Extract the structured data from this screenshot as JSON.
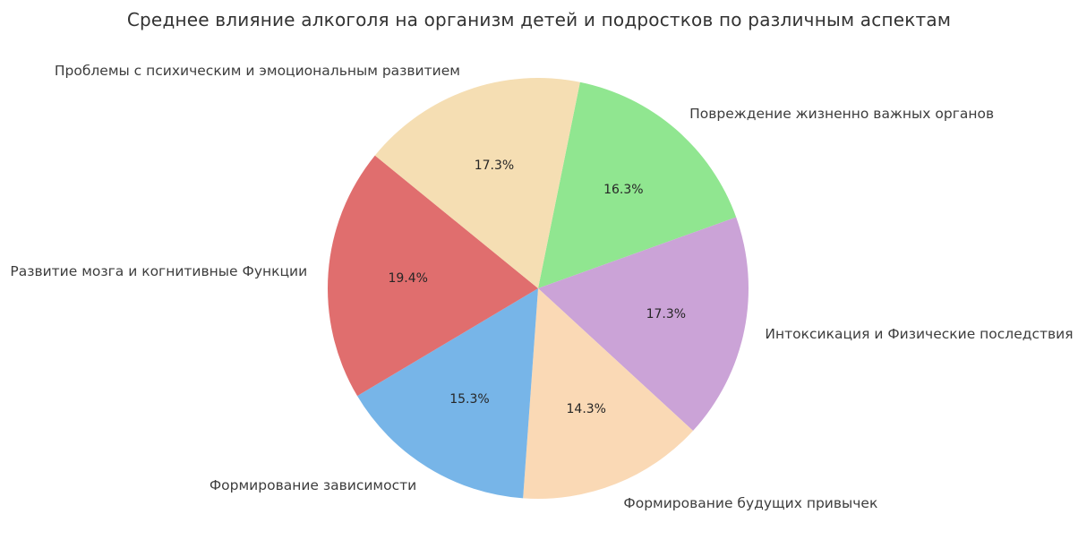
{
  "title": "Среднее влияние алкоголя на организм детей и подростков по различным аспектам",
  "colors": {
    "background": "#ffffff",
    "title_text": "#333333",
    "label_text": "#3d3d3d",
    "percent_text": "#262626"
  },
  "chart_data": {
    "type": "pie",
    "title": "Среднее влияние алкоголя на организм детей и подростков по различным аспектам",
    "legend": "none",
    "grid": "off",
    "start_angle_deg_clockwise_from_top": 11.5,
    "direction": "clockwise",
    "slices": [
      {
        "label": "Повреждение жизненно важных органов",
        "value": 16.3,
        "percent_label": "16.3%",
        "color": "#90e690"
      },
      {
        "label": "Интоксикация и Физические последствия",
        "value": 17.3,
        "percent_label": "17.3%",
        "color": "#cba3d7"
      },
      {
        "label": "Формирование будущих привычек",
        "value": 14.3,
        "percent_label": "14.3%",
        "color": "#fad9b5"
      },
      {
        "label": "Формирование зависимости",
        "value": 15.3,
        "percent_label": "15.3%",
        "color": "#77b5e8"
      },
      {
        "label": "Развитие мозга и когнитивные Функции",
        "value": 19.4,
        "percent_label": "19.4%",
        "color": "#e06e6e"
      },
      {
        "label": "Проблемы с психическим и эмоциональным развитием",
        "value": 17.3,
        "percent_label": "17.3%",
        "color": "#f5deb3"
      }
    ]
  }
}
